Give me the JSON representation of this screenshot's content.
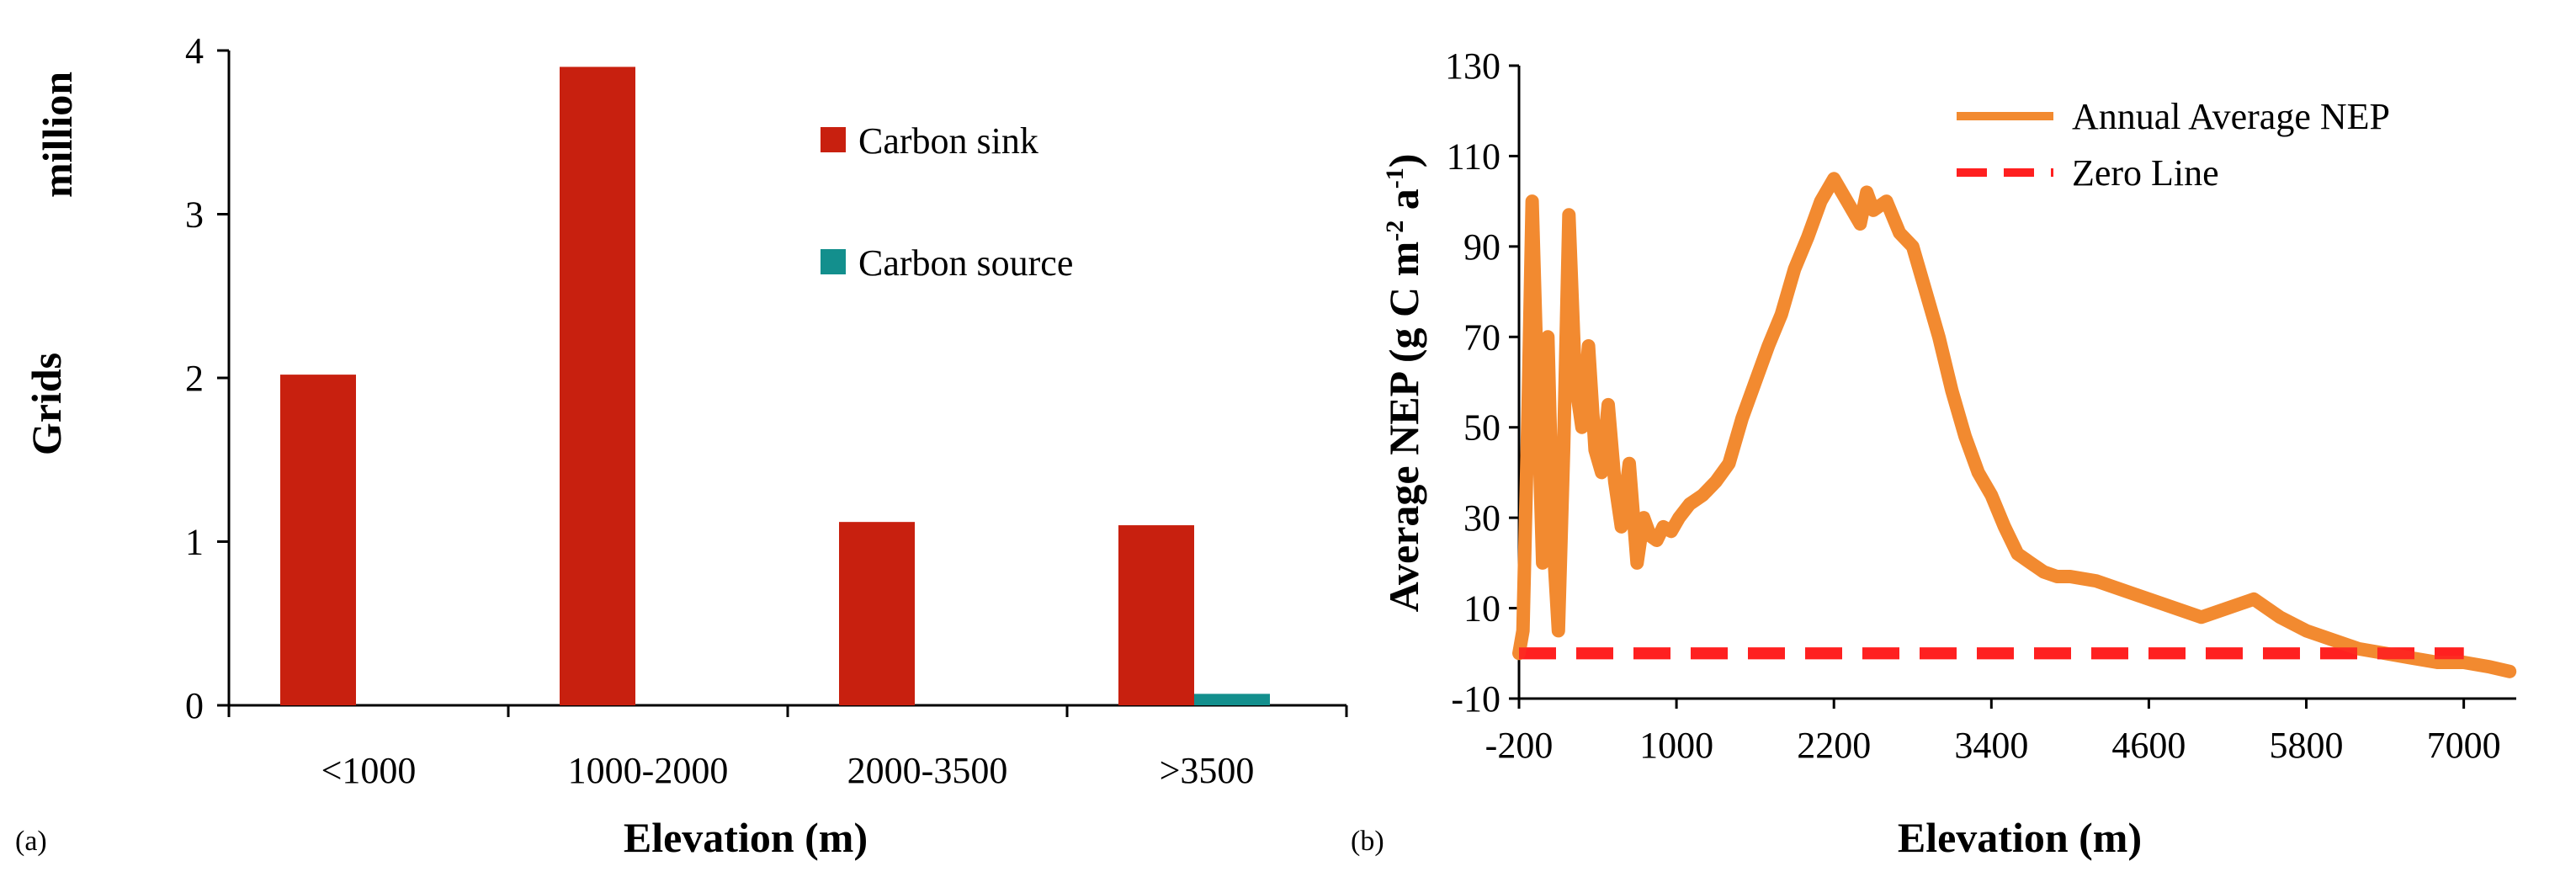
{
  "chart_data": [
    {
      "panel": "(a)",
      "type": "bar",
      "title": "",
      "xlabel": "Elevation (m)",
      "ylabel": "Grids",
      "yunit": "million",
      "categories": [
        "<1000",
        "1000-2000",
        "2000-3500",
        ">3500"
      ],
      "series": [
        {
          "name": "Carbon sink",
          "color": "#C8200F",
          "values": [
            2.02,
            3.9,
            1.12,
            1.1
          ]
        },
        {
          "name": "Carbon source",
          "color": "#138F8D",
          "values": [
            0,
            0,
            0,
            0.07
          ]
        }
      ],
      "ylim": [
        0,
        4
      ],
      "yticks": [
        "0",
        "1",
        "2",
        "3",
        "4"
      ],
      "legend": "top-right"
    },
    {
      "panel": "(b)",
      "type": "line",
      "title": "",
      "xlabel": "Elevation (m)",
      "ylabel": "Average NEP (g C m-2 a-1)",
      "xlim": [
        -200,
        7400
      ],
      "ylim": [
        -10,
        130
      ],
      "xticks": [
        "-200",
        "1000",
        "2200",
        "3400",
        "4600",
        "5800",
        "7000"
      ],
      "yticks": [
        "-10",
        "10",
        "30",
        "50",
        "70",
        "90",
        "110",
        "130"
      ],
      "legend": "top-right",
      "series": [
        {
          "name": "Annual Average NEP",
          "color": "#F28A30",
          "x": [
            -200,
            -170,
            -130,
            -100,
            -60,
            -20,
            20,
            60,
            100,
            140,
            180,
            230,
            280,
            330,
            380,
            430,
            480,
            530,
            580,
            640,
            700,
            750,
            800,
            850,
            900,
            960,
            1020,
            1100,
            1200,
            1300,
            1400,
            1500,
            1600,
            1700,
            1800,
            1900,
            2000,
            2100,
            2200,
            2300,
            2400,
            2450,
            2500,
            2600,
            2700,
            2800,
            2900,
            3000,
            3100,
            3200,
            3300,
            3400,
            3500,
            3600,
            3700,
            3800,
            3900,
            4000,
            4200,
            4400,
            4600,
            4800,
            5000,
            5200,
            5400,
            5600,
            5800,
            6000,
            6200,
            6400,
            6600,
            6800,
            7000,
            7200,
            7350
          ],
          "values": [
            0,
            5,
            55,
            100,
            60,
            20,
            70,
            25,
            5,
            45,
            97,
            60,
            50,
            68,
            45,
            40,
            55,
            38,
            28,
            42,
            20,
            30,
            26,
            25,
            28,
            27,
            30,
            33,
            35,
            38,
            42,
            52,
            60,
            68,
            75,
            85,
            92,
            100,
            105,
            100,
            95,
            102,
            98,
            100,
            93,
            90,
            80,
            70,
            58,
            48,
            40,
            35,
            28,
            22,
            20,
            18,
            17,
            17,
            16,
            14,
            12,
            10,
            8,
            10,
            12,
            8,
            5,
            3,
            1,
            0,
            -1,
            -2,
            -2,
            -3,
            -4
          ]
        },
        {
          "name": "Zero Line",
          "color": "#FF2020",
          "x": [
            -200,
            7000
          ],
          "values": [
            0,
            0
          ]
        }
      ]
    }
  ]
}
